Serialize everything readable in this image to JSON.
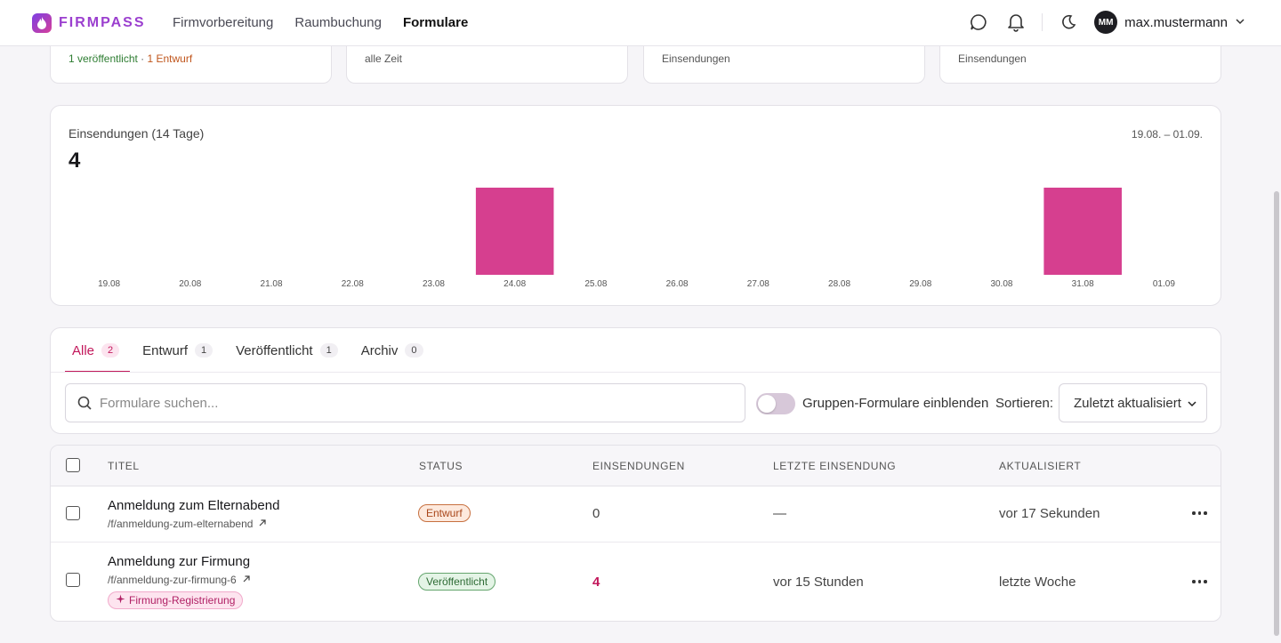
{
  "header": {
    "brand": "FIRMPASS",
    "nav": [
      "Firmvorbereitung",
      "Raumbuchung",
      "Formulare"
    ],
    "user": {
      "initials": "MM",
      "name": "max.mustermann"
    }
  },
  "stats": {
    "card1": {
      "published": "1 veröffentlicht",
      "sep": " · ",
      "draft": "1 Entwurf"
    },
    "card2": {
      "sub": "alle Zeit"
    },
    "card3": {
      "sub": "Einsendungen"
    },
    "card4": {
      "sub": "Einsendungen"
    }
  },
  "chart": {
    "title": "Einsendungen (14 Tage)",
    "total": "4",
    "range": "19.08. – 01.09."
  },
  "chart_data": {
    "type": "bar",
    "categories": [
      "19.08",
      "20.08",
      "21.08",
      "22.08",
      "23.08",
      "24.08",
      "25.08",
      "26.08",
      "27.08",
      "28.08",
      "29.08",
      "30.08",
      "31.08",
      "01.09"
    ],
    "values": [
      0,
      0,
      0,
      0,
      0,
      2,
      0,
      0,
      0,
      0,
      0,
      0,
      2,
      0
    ],
    "ylim": [
      0,
      2
    ],
    "color": "#d63f8f",
    "grid": false
  },
  "tabs": [
    {
      "label": "Alle",
      "count": "2"
    },
    {
      "label": "Entwurf",
      "count": "1"
    },
    {
      "label": "Veröffentlicht",
      "count": "1"
    },
    {
      "label": "Archiv",
      "count": "0"
    }
  ],
  "filters": {
    "search_placeholder": "Formulare suchen...",
    "toggle_label": "Gruppen-Formulare einblenden",
    "sort_label": "Sortieren:",
    "sort_value": "Zuletzt aktualisiert"
  },
  "table": {
    "headers": [
      "TITEL",
      "STATUS",
      "EINSENDUNGEN",
      "LETZTE EINSENDUNG",
      "AKTUALISIERT"
    ],
    "rows": [
      {
        "title": "Anmeldung zum Elternabend",
        "slug": "/f/anmeldung-zum-elternabend",
        "status": "Entwurf",
        "submissions": "0",
        "last": "—",
        "updated": "vor 17 Sekunden"
      },
      {
        "title": "Anmeldung zur Firmung",
        "slug": "/f/anmeldung-zur-firmung-6",
        "tag": "Firmung-Registrierung",
        "status": "Veröffentlicht",
        "submissions": "4",
        "last": "vor 15 Stunden",
        "updated": "letzte Woche"
      }
    ]
  }
}
